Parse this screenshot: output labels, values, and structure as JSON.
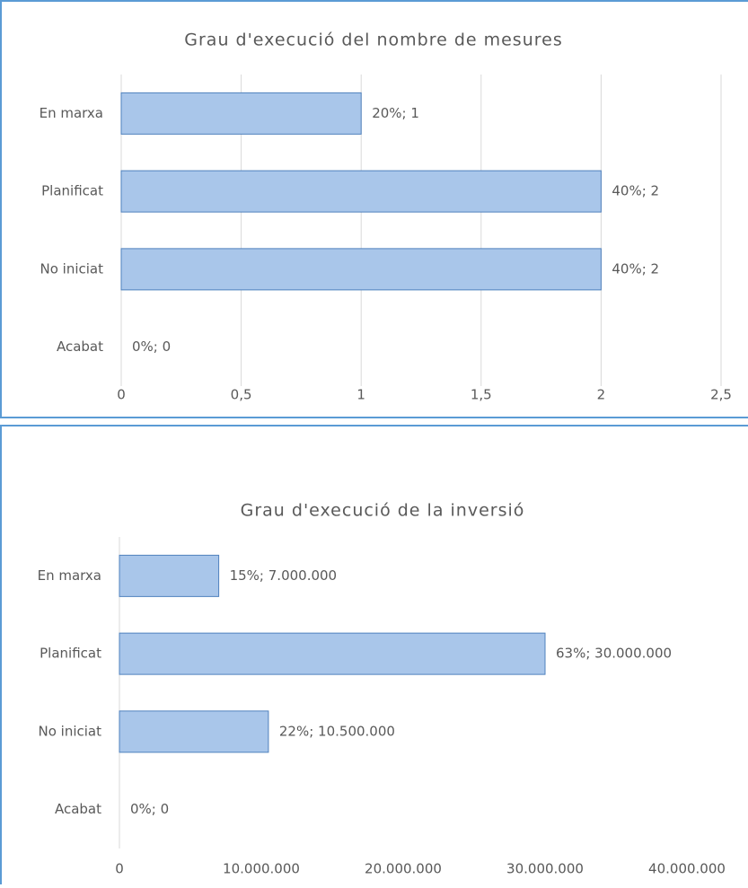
{
  "chart_data": [
    {
      "type": "bar",
      "orientation": "horizontal",
      "title": "Grau d'execució del nombre de mesures",
      "categories": [
        "En marxa",
        "Planificat",
        "No iniciat",
        "Acabat"
      ],
      "values": [
        1,
        2,
        2,
        0
      ],
      "value_labels": [
        "20%; 1",
        "40%; 2",
        "40%; 2",
        "0%; 0"
      ],
      "color": "#a9c6ea",
      "xlim": [
        0,
        2.5
      ],
      "xticks": [
        0,
        {
          "value": 0.5,
          "label": "0,5"
        },
        1,
        {
          "value": 1.5,
          "label": "1,5"
        },
        2,
        {
          "value": 2.5,
          "label": "2,5"
        }
      ],
      "grid": true
    },
    {
      "type": "bar",
      "orientation": "horizontal",
      "title": "Grau d'execució de la inversió",
      "categories": [
        "En marxa",
        "Planificat",
        "No iniciat",
        "Acabat"
      ],
      "values": [
        7000000,
        30000000,
        10500000,
        0
      ],
      "value_labels": [
        "15%; 7.000.000",
        "63%; 30.000.000",
        "22%; 10.500.000",
        "0%; 0"
      ],
      "color": "#a9c6ea",
      "xlim": [
        0,
        40000000
      ],
      "xticks": [
        0,
        {
          "value": 10000000,
          "label": "10.000.000"
        },
        {
          "value": 20000000,
          "label": "20.000.000"
        },
        {
          "value": 30000000,
          "label": "30.000.000"
        },
        {
          "value": 40000000,
          "label": "40.000.000"
        }
      ],
      "grid": false
    }
  ]
}
